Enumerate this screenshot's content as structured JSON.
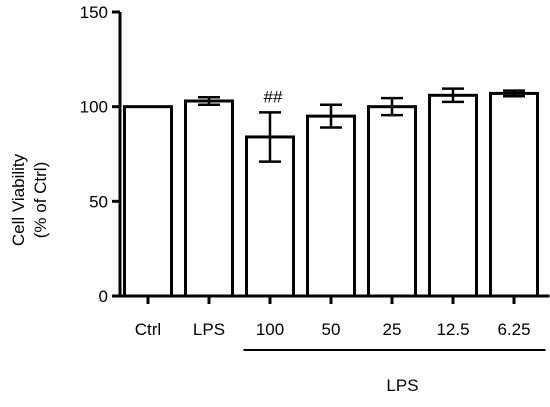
{
  "chart_data": {
    "type": "bar",
    "ylabel_line1": "Cell Viability",
    "ylabel_line2": "(% of Ctrl)",
    "ylim": [
      0,
      150
    ],
    "yticks": [
      0,
      50,
      100,
      150
    ],
    "categories": [
      "Ctrl",
      "LPS",
      "100",
      "50",
      "25",
      "12.5",
      "6.25"
    ],
    "values": [
      100,
      103,
      84,
      95,
      100,
      106,
      107
    ],
    "errors": [
      0,
      2,
      13,
      6,
      4.5,
      3.5,
      1.5
    ],
    "annotations": [
      {
        "category": "100",
        "text": "##"
      }
    ],
    "group_label": {
      "text": "LPS",
      "from_category": "100",
      "to_category": "6.25"
    },
    "grid": false,
    "legend": "none",
    "bar_fill": "#ffffff",
    "bar_stroke": "#000000"
  }
}
